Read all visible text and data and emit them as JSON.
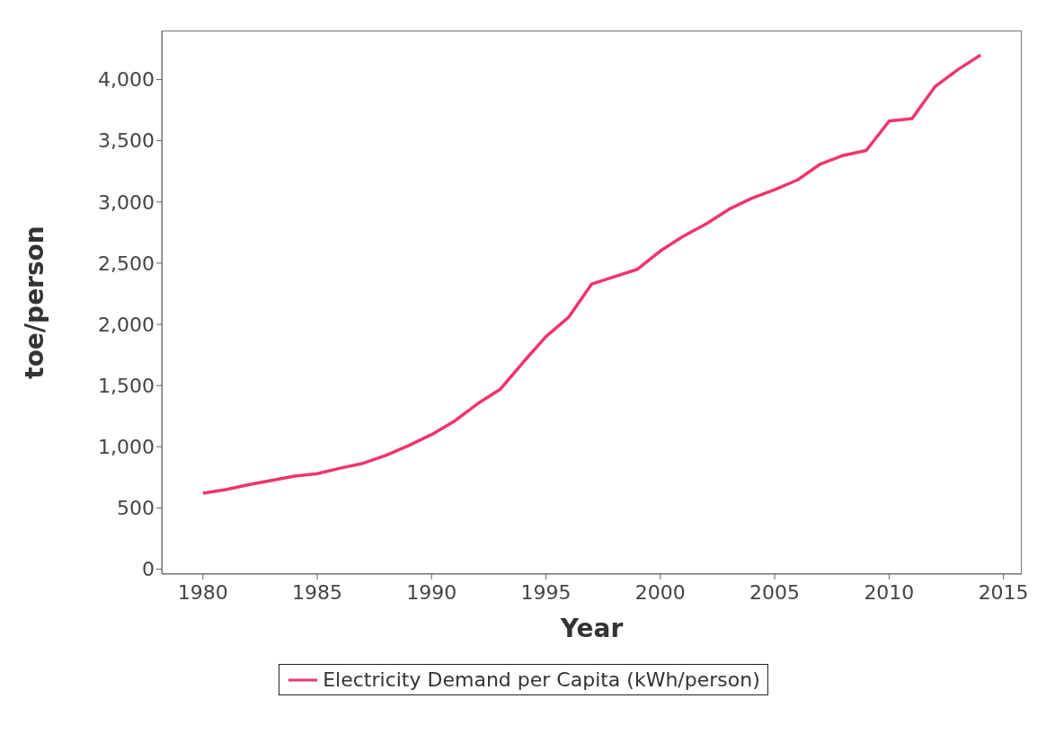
{
  "chart_data": {
    "type": "line",
    "xlabel": "Year",
    "ylabel": "toe/person",
    "x": [
      1980,
      1981,
      1982,
      1983,
      1984,
      1985,
      1986,
      1987,
      1988,
      1989,
      1990,
      1991,
      1992,
      1993,
      1994,
      1995,
      1996,
      1997,
      1998,
      1999,
      2000,
      2001,
      2002,
      2003,
      2004,
      2005,
      2006,
      2007,
      2008,
      2009,
      2010,
      2011,
      2012,
      2013,
      2014
    ],
    "series": [
      {
        "name": "Electricity Demand per Capita (kWh/person)",
        "color": "#f0356b",
        "values": [
          620,
          650,
          690,
          725,
          760,
          780,
          825,
          865,
          930,
          1010,
          1100,
          1210,
          1350,
          1470,
          1690,
          1900,
          2060,
          2330,
          2390,
          2450,
          2600,
          2720,
          2820,
          2940,
          3030,
          3100,
          3180,
          3310,
          3380,
          3420,
          3660,
          3680,
          3940,
          4080,
          4200
        ]
      }
    ],
    "xlim": [
      1978.2,
      2015.8
    ],
    "xticks": [
      1980,
      1985,
      1990,
      1995,
      2000,
      2005,
      2010,
      2015
    ],
    "ylim": [
      -40,
      4400
    ],
    "yticks": [
      0,
      500,
      {
        "value": 1000,
        "label": "1,000"
      },
      {
        "value": 1500,
        "label": "1,500"
      },
      {
        "value": 2000,
        "label": "2,000"
      },
      {
        "value": 2500,
        "label": "2,500"
      },
      {
        "value": 3000,
        "label": "3,000"
      },
      {
        "value": 3500,
        "label": "3,500"
      },
      {
        "value": 4000,
        "label": "4,000"
      }
    ],
    "grid": false,
    "legend": "bottom",
    "marker": "none",
    "line_style": "solid"
  }
}
